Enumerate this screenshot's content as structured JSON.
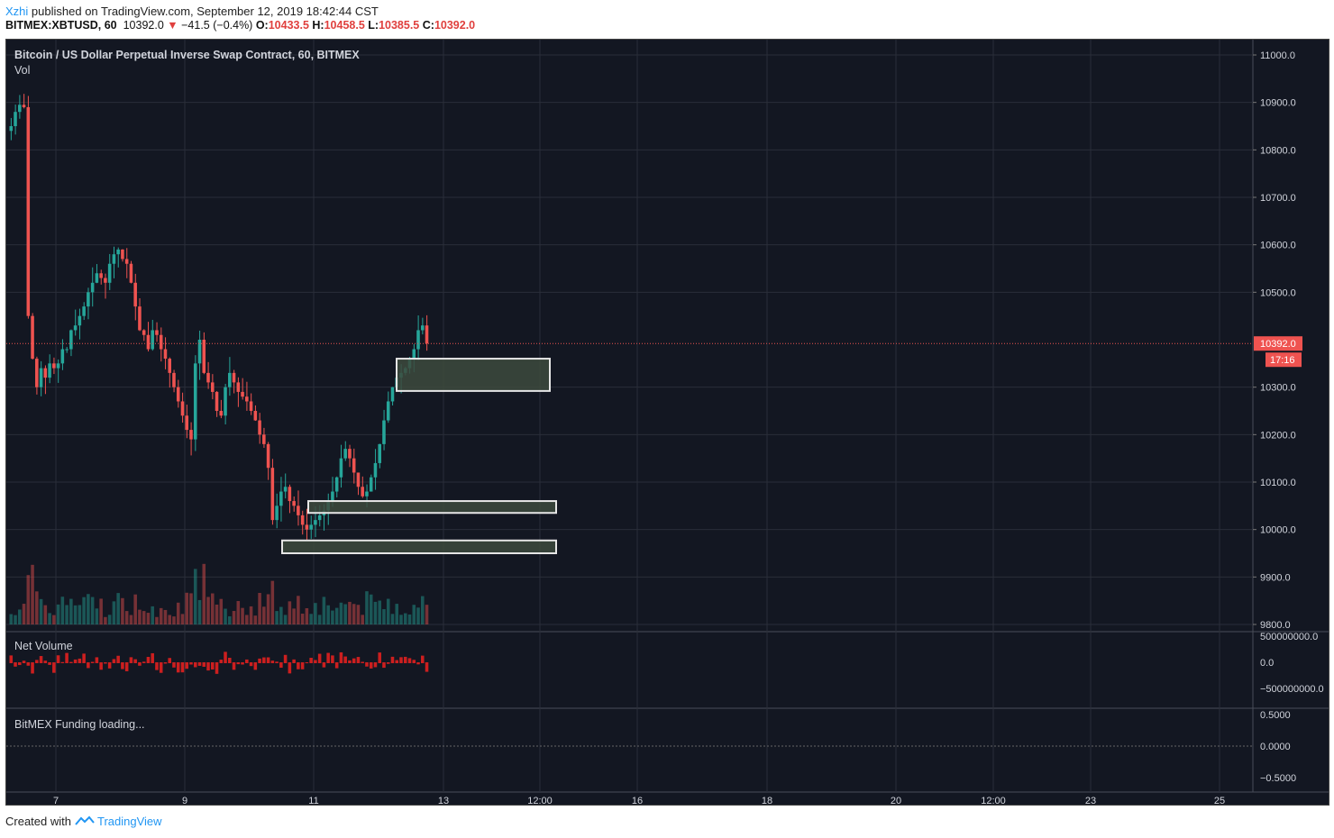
{
  "header": {
    "author": "Xzhi",
    "published_text": "published on TradingView.com, September 12, 2019 18:42:44 CST"
  },
  "quote": {
    "symbol": "BITMEX:XBTUSD, 60",
    "last": "10392.0",
    "arrow": "▼",
    "change": "−41.5 (−0.4%)",
    "open_label": "O:",
    "open": "10433.5",
    "high_label": "H:",
    "high": "10458.5",
    "low_label": "L:",
    "low": "10385.5",
    "close_label": "C:",
    "close": "10392.0"
  },
  "chart_data": {
    "type": "candlestick",
    "title": "Bitcoin / US Dollar Perpetual Inverse Swap Contract, 60, BITMEX",
    "indicator_label": "Vol",
    "y_ticks": [
      "11000.0",
      "10900.0",
      "10800.0",
      "10700.0",
      "10600.0",
      "10500.0",
      "10300.0",
      "10200.0",
      "10100.0",
      "10000.0",
      "9900.0",
      "9800.0"
    ],
    "ylim": [
      9800,
      11000
    ],
    "x_ticks": [
      "7",
      "9",
      "11",
      "13",
      "12:00",
      "16",
      "18",
      "20",
      "12:00",
      "23",
      "25"
    ],
    "current_price": "10392.0",
    "countdown": "17:16",
    "price_path": [
      10850,
      10880,
      10895,
      10890,
      10450,
      10360,
      10300,
      10340,
      10320,
      10350,
      10340,
      10350,
      10380,
      10380,
      10420,
      10430,
      10450,
      10470,
      10500,
      10520,
      10540,
      10530,
      10520,
      10560,
      10580,
      10590,
      10570,
      10560,
      10520,
      10470,
      10420,
      10410,
      10380,
      10420,
      10410,
      10380,
      10360,
      10330,
      10300,
      10270,
      10240,
      10210,
      10190,
      10350,
      10400,
      10330,
      10310,
      10290,
      10250,
      10240,
      10300,
      10330,
      10310,
      10290,
      10280,
      10270,
      10250,
      10230,
      10200,
      10180,
      10130,
      10020,
      10050,
      10080,
      10090,
      10060,
      10050,
      10030,
      10010,
      10000,
      10010,
      10020,
      10030,
      10040,
      10060,
      10080,
      10110,
      10150,
      10170,
      10150,
      10120,
      10090,
      10070,
      10080,
      10110,
      10140,
      10180,
      10230,
      10270,
      10300,
      10320,
      10330,
      10340,
      10360,
      10380,
      10420,
      10430,
      10392
    ],
    "zones": [
      {
        "top": 10360,
        "bottom": 10292
      },
      {
        "top": 10060,
        "bottom": 10035
      },
      {
        "top": 9977,
        "bottom": 9950
      }
    ],
    "net_volume": {
      "label": "Net Volume",
      "ticks": [
        "500000000.0",
        "0.0",
        "−500000000.0"
      ]
    },
    "funding": {
      "label": "BitMEX Funding loading...",
      "ticks": [
        "0.5000",
        "0.0000",
        "−0.5000"
      ]
    },
    "colors": {
      "up": "#26a69a",
      "down": "#ef5350",
      "zone_fill": "#3d4a3d",
      "background": "#131722",
      "grid": "#2a2e39"
    }
  },
  "footer": {
    "created_with": "Created with",
    "brand": "TradingView"
  }
}
